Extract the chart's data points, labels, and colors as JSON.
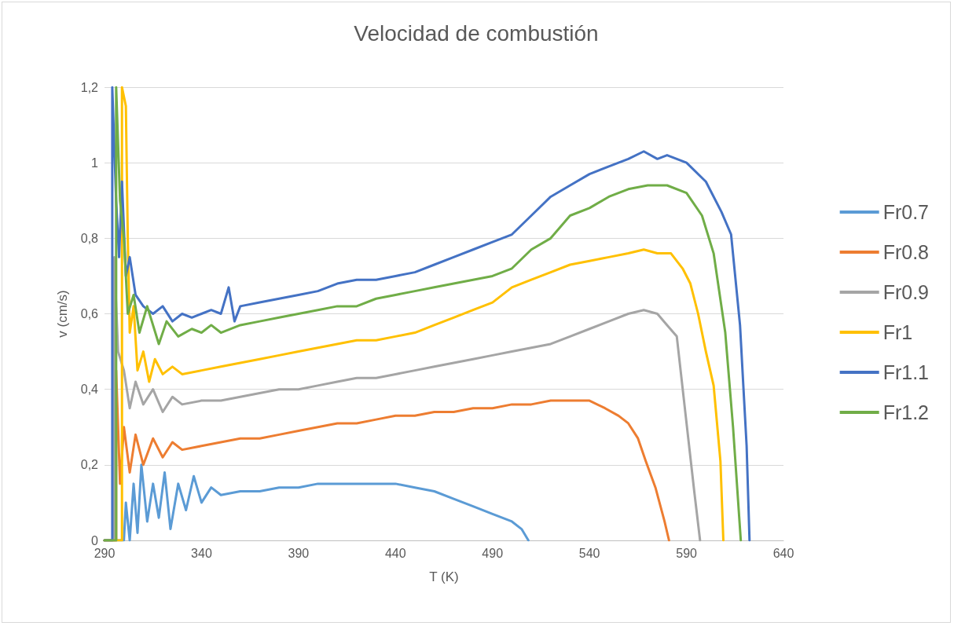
{
  "chart_data": {
    "type": "line",
    "title": "Velocidad de combustión",
    "xlabel": "T (K)",
    "ylabel": "v (cm/s)",
    "xlim": [
      290,
      640
    ],
    "xticks": [
      290,
      340,
      390,
      440,
      490,
      540,
      590,
      640
    ],
    "ylim": [
      0,
      1.2
    ],
    "yticks": [
      0,
      {
        "value": 0.2,
        "label": "0,2"
      },
      {
        "value": 0.4,
        "label": "0,4"
      },
      {
        "value": 0.6,
        "label": "0,6"
      },
      {
        "value": 0.8,
        "label": "0,8"
      },
      1,
      {
        "value": 1.2,
        "label": "1,2"
      }
    ],
    "grid": "y",
    "legend": "right",
    "marker": "none",
    "line_style": "solid",
    "series": [
      {
        "name": "Fr0.7",
        "color": "#5b9bd5",
        "x": [
          290,
          300,
          301,
          303,
          305,
          307,
          309,
          312,
          315,
          318,
          321,
          324,
          328,
          332,
          336,
          340,
          345,
          350,
          360,
          370,
          380,
          390,
          400,
          410,
          420,
          430,
          440,
          450,
          460,
          470,
          480,
          490,
          500,
          505,
          508.5
        ],
        "values": [
          0,
          0,
          0.1,
          0,
          0.15,
          0.02,
          0.2,
          0.05,
          0.15,
          0.06,
          0.18,
          0.03,
          0.15,
          0.08,
          0.17,
          0.1,
          0.14,
          0.12,
          0.13,
          0.13,
          0.14,
          0.14,
          0.15,
          0.15,
          0.15,
          0.15,
          0.15,
          0.14,
          0.13,
          0.11,
          0.09,
          0.07,
          0.05,
          0.03,
          0
        ]
      },
      {
        "name": "Fr0.8",
        "color": "#ed7d31",
        "x": [
          290,
          296,
          296,
          298,
          300,
          303,
          306,
          310,
          315,
          320,
          325,
          330,
          340,
          350,
          360,
          370,
          380,
          390,
          400,
          410,
          420,
          430,
          440,
          450,
          460,
          470,
          480,
          490,
          500,
          510,
          520,
          530,
          540,
          548,
          555,
          560,
          565,
          569,
          574,
          578.7,
          581
        ],
        "values": [
          0,
          0,
          0.45,
          0.15,
          0.3,
          0.18,
          0.28,
          0.2,
          0.27,
          0.22,
          0.26,
          0.24,
          0.25,
          0.26,
          0.27,
          0.27,
          0.28,
          0.29,
          0.3,
          0.31,
          0.31,
          0.32,
          0.33,
          0.33,
          0.34,
          0.34,
          0.35,
          0.35,
          0.36,
          0.36,
          0.37,
          0.37,
          0.37,
          0.35,
          0.33,
          0.31,
          0.27,
          0.21,
          0.14,
          0.05,
          0
        ]
      },
      {
        "name": "Fr0.9",
        "color": "#a5a5a5",
        "x": [
          290,
          295,
          295,
          297,
          300,
          303,
          306,
          310,
          315,
          320,
          325,
          330,
          340,
          350,
          360,
          370,
          380,
          390,
          400,
          410,
          420,
          430,
          440,
          450,
          460,
          470,
          480,
          490,
          500,
          510,
          520,
          530,
          540,
          550,
          560,
          568,
          575,
          580,
          585,
          589.6,
          594,
          597
        ],
        "values": [
          0,
          0,
          0.75,
          0.5,
          0.45,
          0.35,
          0.42,
          0.36,
          0.4,
          0.34,
          0.38,
          0.36,
          0.37,
          0.37,
          0.38,
          0.39,
          0.4,
          0.4,
          0.41,
          0.42,
          0.43,
          0.43,
          0.44,
          0.45,
          0.46,
          0.47,
          0.48,
          0.49,
          0.5,
          0.51,
          0.52,
          0.54,
          0.56,
          0.58,
          0.6,
          0.61,
          0.6,
          0.57,
          0.54,
          0.33,
          0.13,
          0
        ]
      },
      {
        "name": "Fr1",
        "color": "#ffc000",
        "x": [
          290,
          299,
          299,
          301,
          302,
          303,
          305,
          307,
          310,
          313,
          316,
          320,
          325,
          330,
          340,
          350,
          360,
          370,
          380,
          390,
          400,
          410,
          420,
          430,
          440,
          450,
          460,
          470,
          480,
          490,
          500,
          510,
          520,
          530,
          540,
          550,
          560,
          568,
          575,
          582,
          588,
          592,
          596,
          600,
          604,
          607.5,
          609
        ],
        "values": [
          0,
          0,
          1.2,
          1.15,
          0.8,
          0.55,
          0.62,
          0.45,
          0.5,
          0.42,
          0.48,
          0.44,
          0.46,
          0.44,
          0.45,
          0.46,
          0.47,
          0.48,
          0.49,
          0.5,
          0.51,
          0.52,
          0.53,
          0.53,
          0.54,
          0.55,
          0.57,
          0.59,
          0.61,
          0.63,
          0.67,
          0.69,
          0.71,
          0.73,
          0.74,
          0.75,
          0.76,
          0.77,
          0.76,
          0.76,
          0.72,
          0.68,
          0.6,
          0.5,
          0.41,
          0.21,
          0
        ]
      },
      {
        "name": "Fr1.1",
        "color": "#4472c4",
        "x": [
          290,
          294,
          294,
          296,
          297.5,
          299,
          301,
          303,
          306,
          310,
          315,
          320,
          325,
          330,
          335,
          340,
          345,
          350,
          354,
          357,
          360,
          370,
          380,
          390,
          400,
          410,
          420,
          430,
          440,
          450,
          460,
          470,
          480,
          490,
          500,
          510,
          520,
          530,
          540,
          550,
          560,
          568,
          575,
          580,
          590,
          600,
          608,
          613,
          617.6,
          621,
          622.5
        ],
        "values": [
          0,
          0,
          1.2,
          0.9,
          0.75,
          0.95,
          0.7,
          0.75,
          0.65,
          0.62,
          0.6,
          0.62,
          0.58,
          0.6,
          0.59,
          0.6,
          0.61,
          0.6,
          0.67,
          0.58,
          0.62,
          0.63,
          0.64,
          0.65,
          0.66,
          0.68,
          0.69,
          0.69,
          0.7,
          0.71,
          0.73,
          0.75,
          0.77,
          0.79,
          0.81,
          0.86,
          0.91,
          0.94,
          0.97,
          0.99,
          1.01,
          1.03,
          1.01,
          1.02,
          1,
          0.95,
          0.87,
          0.81,
          0.57,
          0.25,
          0
        ]
      },
      {
        "name": "Fr1.2",
        "color": "#70ad47",
        "x": [
          290,
          296,
          296,
          298,
          300,
          302,
          305,
          308,
          312,
          318,
          322,
          328,
          335,
          340,
          345,
          350,
          360,
          370,
          380,
          390,
          400,
          410,
          420,
          430,
          440,
          450,
          460,
          470,
          480,
          490,
          500,
          510,
          520,
          530,
          540,
          550,
          560,
          570,
          580,
          590,
          598,
          604,
          610,
          614,
          618
        ],
        "values": [
          0,
          0,
          1.2,
          0.9,
          0.8,
          0.6,
          0.65,
          0.55,
          0.62,
          0.52,
          0.58,
          0.54,
          0.56,
          0.55,
          0.57,
          0.55,
          0.57,
          0.58,
          0.59,
          0.6,
          0.61,
          0.62,
          0.62,
          0.64,
          0.65,
          0.66,
          0.67,
          0.68,
          0.69,
          0.7,
          0.72,
          0.77,
          0.8,
          0.86,
          0.88,
          0.91,
          0.93,
          0.94,
          0.94,
          0.92,
          0.86,
          0.76,
          0.55,
          0.3,
          0
        ]
      }
    ]
  }
}
